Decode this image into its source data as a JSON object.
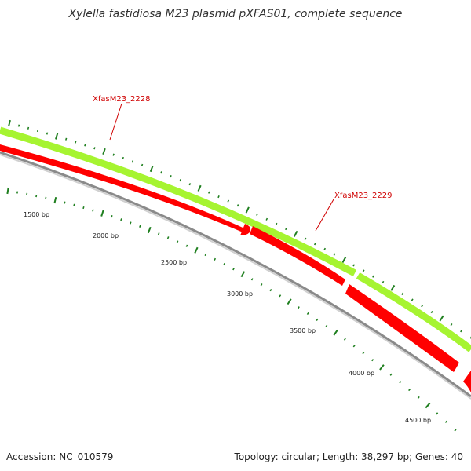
{
  "title": "Xylella fastidiosa M23 plasmid pXFAS01, complete sequence",
  "accession": "Accession: NC_010579",
  "summary": "Topology: circular; Length: 38,297 bp; Genes: 40",
  "colors": {
    "cds_forward": "#a6f431",
    "cds_reverse": "#ff0000",
    "backbone": "#8a8a8a",
    "ticks": "#1f7f1f",
    "gene_label": "#d00000"
  },
  "tick_labels": [
    "1500 bp",
    "2000 bp",
    "2500 bp",
    "3000 bp",
    "3500 bp",
    "4000 bp",
    "4500 bp"
  ],
  "gene_labels": [
    "XfasM23_2228",
    "XfasM23_2229"
  ]
}
